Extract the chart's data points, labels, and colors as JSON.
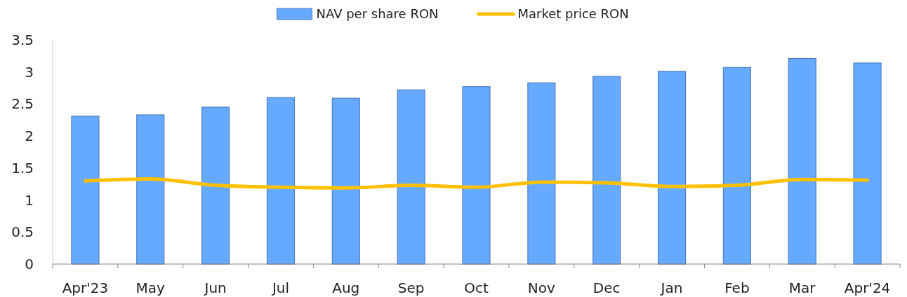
{
  "chart_data": {
    "type": "bar",
    "categories": [
      "Apr'23",
      "May",
      "Jun",
      "Jul",
      "Aug",
      "Sep",
      "Oct",
      "Nov",
      "Dec",
      "Jan",
      "Feb",
      "Mar",
      "Apr'24"
    ],
    "series": [
      {
        "name": "NAV per share RON",
        "color": "#66aaff",
        "values": [
          2.31,
          2.33,
          2.45,
          2.6,
          2.59,
          2.72,
          2.77,
          2.83,
          2.93,
          3.01,
          3.07,
          3.21,
          3.14
        ]
      },
      {
        "name": "Market price RON",
        "type": "line",
        "color": "#ffc000",
        "values": [
          1.3,
          1.33,
          1.23,
          1.2,
          1.19,
          1.23,
          1.2,
          1.28,
          1.27,
          1.21,
          1.23,
          1.32,
          1.31
        ]
      }
    ],
    "ylim": [
      0,
      3.5
    ],
    "yticks": [
      0,
      0.5,
      1,
      1.5,
      2,
      2.5,
      3,
      3.5
    ],
    "grid": false,
    "legend": "top"
  }
}
